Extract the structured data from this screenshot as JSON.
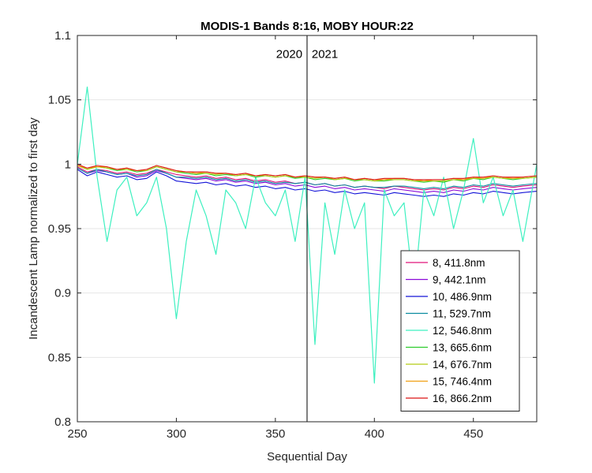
{
  "chart_data": {
    "type": "line",
    "title": "MODIS-1 Bands 8:16, MOBY HOUR:22",
    "xlabel": "Sequential Day",
    "ylabel": "Incandescent Lamp normalized to first day",
    "xlim": [
      250,
      482
    ],
    "ylim": [
      0.8,
      1.1
    ],
    "xticks": [
      "250",
      "300",
      "350",
      "400",
      "450"
    ],
    "yticks": [
      "0.8",
      "0.85",
      "0.9",
      "0.95",
      "1",
      "1.05",
      "1.1"
    ],
    "grid": true,
    "legend_position": "lower-right",
    "annotations": [
      {
        "text": "2020",
        "x": 357
      },
      {
        "text": "2021",
        "x": 375
      }
    ],
    "year_boundary_x": 366,
    "x": [
      250,
      255,
      260,
      265,
      270,
      275,
      280,
      285,
      290,
      295,
      300,
      305,
      310,
      315,
      320,
      325,
      330,
      335,
      340,
      345,
      350,
      355,
      360,
      365,
      370,
      375,
      380,
      385,
      390,
      395,
      400,
      405,
      410,
      415,
      420,
      425,
      430,
      435,
      440,
      445,
      450,
      455,
      460,
      465,
      470,
      475,
      482
    ],
    "series": [
      {
        "name": "8, 411.8nm",
        "color": "#e0147a",
        "values": [
          0.998,
          0.994,
          0.996,
          0.995,
          0.993,
          0.994,
          0.992,
          0.993,
          0.996,
          0.994,
          0.992,
          0.991,
          0.99,
          0.991,
          0.989,
          0.99,
          0.988,
          0.989,
          0.987,
          0.988,
          0.986,
          0.987,
          0.985,
          0.986,
          0.984,
          0.985,
          0.983,
          0.984,
          0.982,
          0.983,
          0.982,
          0.981,
          0.983,
          0.982,
          0.981,
          0.98,
          0.981,
          0.98,
          0.982,
          0.981,
          0.983,
          0.982,
          0.984,
          0.983,
          0.982,
          0.983,
          0.984
        ]
      },
      {
        "name": "9, 442.1nm",
        "color": "#8a0ad8",
        "values": [
          0.997,
          0.993,
          0.995,
          0.994,
          0.992,
          0.993,
          0.99,
          0.991,
          0.995,
          0.993,
          0.99,
          0.989,
          0.988,
          0.989,
          0.987,
          0.988,
          0.986,
          0.987,
          0.985,
          0.986,
          0.984,
          0.985,
          0.983,
          0.984,
          0.982,
          0.983,
          0.981,
          0.982,
          0.98,
          0.981,
          0.98,
          0.979,
          0.981,
          0.98,
          0.979,
          0.978,
          0.979,
          0.978,
          0.98,
          0.979,
          0.981,
          0.98,
          0.982,
          0.981,
          0.98,
          0.981,
          0.982
        ]
      },
      {
        "name": "10, 486.9nm",
        "color": "#1414d8",
        "values": [
          0.996,
          0.991,
          0.994,
          0.992,
          0.99,
          0.991,
          0.988,
          0.989,
          0.994,
          0.991,
          0.987,
          0.986,
          0.985,
          0.986,
          0.984,
          0.985,
          0.983,
          0.984,
          0.982,
          0.983,
          0.981,
          0.982,
          0.98,
          0.981,
          0.979,
          0.98,
          0.978,
          0.979,
          0.977,
          0.978,
          0.977,
          0.976,
          0.978,
          0.977,
          0.976,
          0.975,
          0.976,
          0.975,
          0.977,
          0.976,
          0.978,
          0.977,
          0.979,
          0.978,
          0.977,
          0.978,
          0.979
        ]
      },
      {
        "name": "11, 529.7nm",
        "color": "#0a8ca0",
        "values": [
          0.997,
          0.993,
          0.996,
          0.994,
          0.992,
          0.993,
          0.991,
          0.992,
          0.996,
          0.993,
          0.99,
          0.99,
          0.989,
          0.99,
          0.988,
          0.989,
          0.987,
          0.988,
          0.986,
          0.987,
          0.985,
          0.986,
          0.985,
          0.986,
          0.984,
          0.985,
          0.983,
          0.984,
          0.982,
          0.983,
          0.982,
          0.982,
          0.983,
          0.983,
          0.982,
          0.981,
          0.982,
          0.981,
          0.983,
          0.982,
          0.984,
          0.983,
          0.985,
          0.984,
          0.983,
          0.984,
          0.985
        ]
      },
      {
        "name": "12, 546.8nm",
        "color": "#3ef0c0",
        "values": [
          1.0,
          1.06,
          0.99,
          0.94,
          0.98,
          0.99,
          0.96,
          0.97,
          0.99,
          0.95,
          0.88,
          0.94,
          0.98,
          0.96,
          0.93,
          0.98,
          0.97,
          0.95,
          0.99,
          0.97,
          0.96,
          0.98,
          0.94,
          0.99,
          0.86,
          0.97,
          0.93,
          0.98,
          0.95,
          0.97,
          0.83,
          0.98,
          0.96,
          0.97,
          0.9,
          0.98,
          0.96,
          0.99,
          0.95,
          0.98,
          1.02,
          0.97,
          0.99,
          0.96,
          0.98,
          0.94,
          1.0
        ]
      },
      {
        "name": "13, 665.6nm",
        "color": "#2ecc2e",
        "values": [
          0.999,
          0.996,
          0.998,
          0.997,
          0.995,
          0.996,
          0.994,
          0.995,
          0.998,
          0.996,
          0.994,
          0.993,
          0.992,
          0.993,
          0.991,
          0.992,
          0.991,
          0.992,
          0.99,
          0.991,
          0.99,
          0.991,
          0.989,
          0.99,
          0.988,
          0.989,
          0.988,
          0.989,
          0.987,
          0.988,
          0.987,
          0.987,
          0.988,
          0.988,
          0.987,
          0.986,
          0.987,
          0.986,
          0.988,
          0.987,
          0.989,
          0.988,
          0.99,
          0.989,
          0.988,
          0.989,
          0.99
        ]
      },
      {
        "name": "14, 676.7nm",
        "color": "#b4cc14",
        "values": [
          0.999,
          0.996,
          0.998,
          0.997,
          0.996,
          0.996,
          0.995,
          0.995,
          0.998,
          0.996,
          0.994,
          0.994,
          0.993,
          0.993,
          0.992,
          0.993,
          0.991,
          0.992,
          0.991,
          0.991,
          0.99,
          0.991,
          0.99,
          0.99,
          0.989,
          0.99,
          0.988,
          0.989,
          0.988,
          0.988,
          0.987,
          0.988,
          0.988,
          0.988,
          0.987,
          0.987,
          0.987,
          0.987,
          0.988,
          0.988,
          0.989,
          0.989,
          0.99,
          0.989,
          0.989,
          0.989,
          0.99
        ]
      },
      {
        "name": "15, 746.4nm",
        "color": "#f0a014",
        "values": [
          0.999,
          0.997,
          0.998,
          0.998,
          0.996,
          0.997,
          0.995,
          0.996,
          0.999,
          0.997,
          0.995,
          0.994,
          0.993,
          0.994,
          0.993,
          0.993,
          0.992,
          0.993,
          0.991,
          0.992,
          0.991,
          0.992,
          0.99,
          0.991,
          0.99,
          0.99,
          0.989,
          0.99,
          0.988,
          0.989,
          0.988,
          0.988,
          0.989,
          0.989,
          0.988,
          0.987,
          0.988,
          0.988,
          0.989,
          0.988,
          0.99,
          0.989,
          0.991,
          0.99,
          0.989,
          0.99,
          0.991
        ]
      },
      {
        "name": "16, 866.2nm",
        "color": "#dc1414",
        "values": [
          1.0,
          0.997,
          0.999,
          0.998,
          0.996,
          0.997,
          0.995,
          0.996,
          0.999,
          0.997,
          0.995,
          0.994,
          0.994,
          0.994,
          0.993,
          0.993,
          0.992,
          0.993,
          0.991,
          0.992,
          0.991,
          0.992,
          0.99,
          0.991,
          0.99,
          0.99,
          0.989,
          0.99,
          0.988,
          0.989,
          0.988,
          0.989,
          0.989,
          0.989,
          0.988,
          0.988,
          0.988,
          0.988,
          0.989,
          0.989,
          0.99,
          0.99,
          0.991,
          0.99,
          0.99,
          0.99,
          0.991
        ]
      }
    ]
  }
}
